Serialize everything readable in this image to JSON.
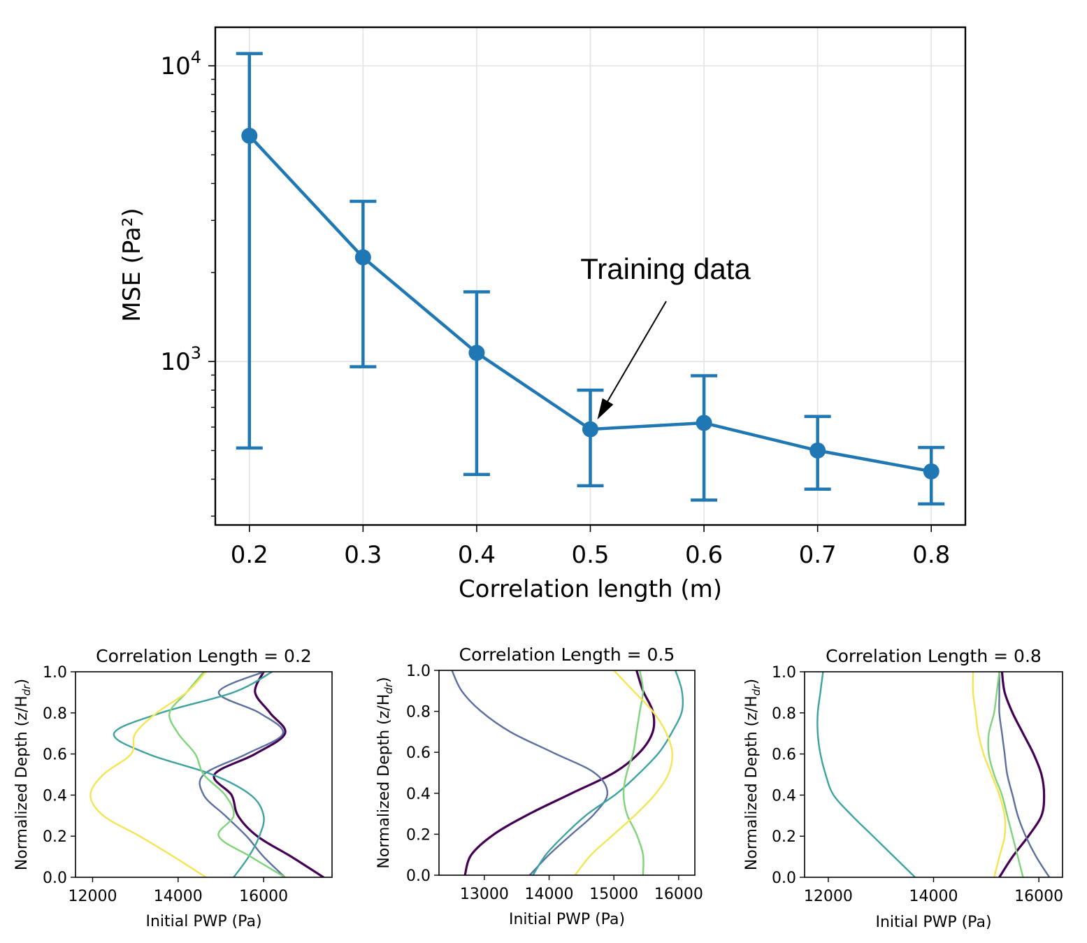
{
  "chart_data": [
    {
      "type": "line",
      "id": "main",
      "title": "",
      "xlabel": "Correlation length (m)",
      "ylabel": "MSE (Pa²)",
      "yscale": "log",
      "xlim": [
        0.17,
        0.83
      ],
      "ylim": [
        280,
        13500
      ],
      "xticks": [
        0.2,
        0.3,
        0.4,
        0.5,
        0.6,
        0.7,
        0.8
      ],
      "xtick_labels": [
        "0.2",
        "0.3",
        "0.4",
        "0.5",
        "0.6",
        "0.7",
        "0.8"
      ],
      "yticks_major": [
        {
          "value": 1000,
          "base": "10",
          "exp": "3"
        },
        {
          "value": 10000,
          "base": "10",
          "exp": "4"
        }
      ],
      "grid": true,
      "color": "#1f77b4",
      "series": [
        {
          "name": "MSE",
          "x": [
            0.2,
            0.3,
            0.4,
            0.5,
            0.6,
            0.7,
            0.8
          ],
          "y": [
            5800,
            2250,
            1070,
            590,
            620,
            500,
            425
          ],
          "err_low": [
            510,
            960,
            415,
            380,
            340,
            370,
            330
          ],
          "err_high": [
            11000,
            3480,
            1720,
            800,
            895,
            652,
            512
          ]
        }
      ],
      "annotation": {
        "text": "Training data",
        "x": 0.5,
        "y": 590
      }
    },
    {
      "type": "line",
      "id": "cl02",
      "title": "Correlation Length = 0.2",
      "xlabel": "Initial PWP (Pa)",
      "ylabel": "Normalized Depth (z/H",
      "ylabel_sub": "dr",
      "ylabel_end": ")",
      "xlim": [
        11600,
        17600
      ],
      "ylim": [
        0,
        1
      ],
      "xticks": [
        12000,
        14000,
        16000
      ],
      "xtick_labels": [
        "12000",
        "14000",
        "16000"
      ],
      "yticks": [
        0,
        0.2,
        0.4,
        0.6,
        0.8,
        1.0
      ],
      "ytick_labels": [
        "0.0",
        "0.2",
        "0.4",
        "0.6",
        "0.8",
        "1.0"
      ],
      "series": [
        {
          "name": "purple",
          "color": "#440154",
          "width": 3.2,
          "y": [
            0,
            0.1,
            0.2,
            0.3,
            0.4,
            0.5,
            0.6,
            0.7,
            0.8,
            0.9,
            1.0
          ],
          "x": [
            17400,
            16650,
            15850,
            15400,
            15250,
            14850,
            15800,
            16500,
            16150,
            15800,
            16000
          ]
        },
        {
          "name": "slate",
          "color": "#5b6fa0",
          "width": 2.4,
          "y": [
            0,
            0.1,
            0.2,
            0.3,
            0.4,
            0.5,
            0.6,
            0.7,
            0.8,
            0.9,
            1.0
          ],
          "x": [
            16500,
            16000,
            15600,
            15100,
            14600,
            14600,
            15600,
            16450,
            15900,
            14950,
            16000
          ]
        },
        {
          "name": "teal",
          "color": "#3ea3a0",
          "width": 2.4,
          "y": [
            0,
            0.1,
            0.2,
            0.3,
            0.4,
            0.5,
            0.6,
            0.7,
            0.8,
            0.9,
            1.0
          ],
          "x": [
            15300,
            15650,
            15900,
            16000,
            15700,
            14800,
            13300,
            12500,
            13600,
            15300,
            16200
          ]
        },
        {
          "name": "green",
          "color": "#7fd37a",
          "width": 2.4,
          "y": [
            0,
            0.1,
            0.2,
            0.3,
            0.4,
            0.5,
            0.6,
            0.7,
            0.8,
            0.9,
            1.0
          ],
          "x": [
            16500,
            15700,
            14950,
            15300,
            15100,
            14600,
            14400,
            14000,
            13800,
            14200,
            14600
          ]
        },
        {
          "name": "yellow",
          "color": "#f5e553",
          "width": 2.4,
          "y": [
            0,
            0.1,
            0.2,
            0.3,
            0.4,
            0.5,
            0.6,
            0.7,
            0.8,
            0.9,
            1.0
          ],
          "x": [
            14650,
            13900,
            13100,
            12250,
            11950,
            12250,
            12900,
            13000,
            13500,
            14200,
            14650
          ]
        }
      ]
    },
    {
      "type": "line",
      "id": "cl05",
      "title": "Correlation Length = 0.5",
      "xlabel": "Initial PWP (Pa)",
      "ylabel": "Normalized Depth (z/H",
      "ylabel_sub": "dr",
      "ylabel_end": ")",
      "xlim": [
        12300,
        16250
      ],
      "ylim": [
        0,
        1
      ],
      "xticks": [
        13000,
        14000,
        15000,
        16000
      ],
      "xtick_labels": [
        "13000",
        "14000",
        "15000",
        "16000"
      ],
      "yticks": [
        0,
        0.2,
        0.4,
        0.6,
        0.8,
        1.0
      ],
      "ytick_labels": [
        "0.0",
        "0.2",
        "0.4",
        "0.6",
        "0.8",
        "1.0"
      ],
      "series": [
        {
          "name": "purple",
          "color": "#440154",
          "width": 3.2,
          "y": [
            0,
            0.1,
            0.2,
            0.3,
            0.4,
            0.5,
            0.6,
            0.7,
            0.8,
            0.9,
            1.0
          ],
          "x": [
            12700,
            12800,
            13150,
            13700,
            14350,
            15000,
            15400,
            15600,
            15600,
            15450,
            15350
          ]
        },
        {
          "name": "slate",
          "color": "#5b6fa0",
          "width": 2.4,
          "y": [
            0,
            0.1,
            0.2,
            0.3,
            0.4,
            0.5,
            0.6,
            0.7,
            0.8,
            0.9,
            1.0
          ],
          "x": [
            13700,
            14000,
            14350,
            14700,
            14900,
            14700,
            14050,
            13400,
            12950,
            12650,
            12500
          ]
        },
        {
          "name": "teal",
          "color": "#3ea3a0",
          "width": 2.4,
          "y": [
            0,
            0.1,
            0.2,
            0.3,
            0.4,
            0.5,
            0.6,
            0.7,
            0.8,
            0.9,
            1.0
          ],
          "x": [
            13750,
            13950,
            14250,
            14600,
            15050,
            15400,
            15700,
            15900,
            16050,
            16050,
            15950
          ]
        },
        {
          "name": "green",
          "color": "#7fd37a",
          "width": 2.4,
          "y": [
            0,
            0.1,
            0.2,
            0.3,
            0.4,
            0.5,
            0.6,
            0.7,
            0.8,
            0.9,
            1.0
          ],
          "x": [
            15450,
            15450,
            15350,
            15200,
            15150,
            15200,
            15300,
            15350,
            15400,
            15450,
            15400
          ]
        },
        {
          "name": "yellow",
          "color": "#f5e553",
          "width": 2.4,
          "y": [
            0,
            0.1,
            0.2,
            0.3,
            0.4,
            0.5,
            0.6,
            0.7,
            0.8,
            0.9,
            1.0
          ],
          "x": [
            14400,
            14650,
            15000,
            15350,
            15650,
            15850,
            15900,
            15800,
            15600,
            15300,
            15000
          ]
        }
      ]
    },
    {
      "type": "line",
      "id": "cl08",
      "title": "Correlation Length = 0.8",
      "xlabel": "Initial PWP (Pa)",
      "ylabel": "Normalized Depth (z/H",
      "ylabel_sub": "dr",
      "ylabel_end": ")",
      "xlim": [
        11550,
        16450
      ],
      "ylim": [
        0,
        1
      ],
      "xticks": [
        12000,
        14000,
        16000
      ],
      "xtick_labels": [
        "12000",
        "14000",
        "16000"
      ],
      "yticks": [
        0,
        0.2,
        0.4,
        0.6,
        0.8,
        1.0
      ],
      "ytick_labels": [
        "0.0",
        "0.2",
        "0.4",
        "0.6",
        "0.8",
        "1.0"
      ],
      "series": [
        {
          "name": "purple",
          "color": "#440154",
          "width": 3.2,
          "y": [
            0,
            0.1,
            0.2,
            0.3,
            0.4,
            0.5,
            0.6,
            0.7,
            0.8,
            0.9,
            1.0
          ],
          "x": [
            15250,
            15500,
            15800,
            16050,
            16100,
            16050,
            15900,
            15700,
            15500,
            15350,
            15300
          ]
        },
        {
          "name": "slate",
          "color": "#5b6fa0",
          "width": 2.4,
          "y": [
            0,
            0.1,
            0.2,
            0.3,
            0.4,
            0.5,
            0.6,
            0.7,
            0.8,
            0.9,
            1.0
          ],
          "x": [
            16200,
            15950,
            15750,
            15600,
            15500,
            15400,
            15350,
            15300,
            15250,
            15250,
            15250
          ]
        },
        {
          "name": "teal",
          "color": "#3ea3a0",
          "width": 2.4,
          "y": [
            0,
            0.1,
            0.2,
            0.3,
            0.4,
            0.5,
            0.6,
            0.7,
            0.8,
            0.9,
            1.0
          ],
          "x": [
            13650,
            13250,
            12850,
            12450,
            12100,
            11950,
            11850,
            11800,
            11800,
            11850,
            11900
          ]
        },
        {
          "name": "green",
          "color": "#7fd37a",
          "width": 2.4,
          "y": [
            0,
            0.1,
            0.2,
            0.3,
            0.4,
            0.5,
            0.6,
            0.7,
            0.8,
            0.9,
            1.0
          ],
          "x": [
            15700,
            15600,
            15500,
            15400,
            15300,
            15150,
            15050,
            15050,
            15150,
            15200,
            15250
          ]
        },
        {
          "name": "yellow",
          "color": "#f5e553",
          "width": 2.4,
          "y": [
            0,
            0.1,
            0.2,
            0.3,
            0.4,
            0.5,
            0.6,
            0.7,
            0.8,
            0.9,
            1.0
          ],
          "x": [
            15150,
            15250,
            15350,
            15350,
            15250,
            15100,
            14950,
            14850,
            14800,
            14750,
            14750
          ]
        }
      ]
    }
  ]
}
